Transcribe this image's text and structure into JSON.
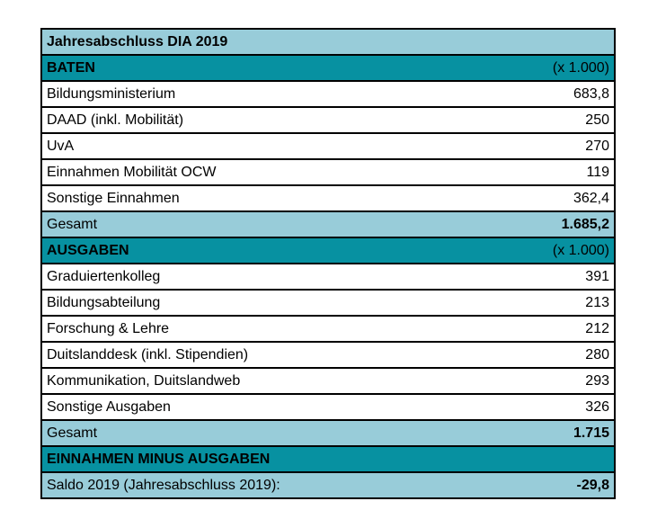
{
  "table": {
    "title": "Jahresabschluss DIA 2019",
    "unit_note": "(x 1.000)",
    "colors": {
      "teal": "#0791A1",
      "light_blue": "#98CCD9",
      "border": "#000000",
      "text": "#000000",
      "background": "#FFFFFF"
    },
    "rows": [
      {
        "label": "Jahresabschluss DIA 2019",
        "value": ""
      },
      {
        "label": "BATEN",
        "value": "(x 1.000)"
      },
      {
        "label": "Bildungsministerium",
        "value": "683,8"
      },
      {
        "label": "DAAD (inkl. Mobilität)",
        "value": "250"
      },
      {
        "label": "UvA",
        "value": "270"
      },
      {
        "label": "Einnahmen Mobilität OCW",
        "value": "119"
      },
      {
        "label": "Sonstige Einnahmen",
        "value": "362,4"
      },
      {
        "label": "Gesamt",
        "value": "1.685,2"
      },
      {
        "label": "AUSGABEN",
        "value": "(x 1.000)"
      },
      {
        "label": "Graduiertenkolleg",
        "value": "391"
      },
      {
        "label": "Bildungsabteilung",
        "value": "213"
      },
      {
        "label": "Forschung & Lehre",
        "value": "212"
      },
      {
        "label": "Duitslanddesk (inkl. Stipendien)",
        "value": "280"
      },
      {
        "label": "Kommunikation, Duitslandweb",
        "value": "293"
      },
      {
        "label": "Sonstige Ausgaben",
        "value": "326"
      },
      {
        "label": "Gesamt",
        "value": "1.715"
      },
      {
        "label": "EINNAHMEN MINUS AUSGABEN",
        "value": ""
      },
      {
        "label": "Saldo 2019 (Jahresabschluss 2019):",
        "value": "-29,8"
      }
    ]
  }
}
